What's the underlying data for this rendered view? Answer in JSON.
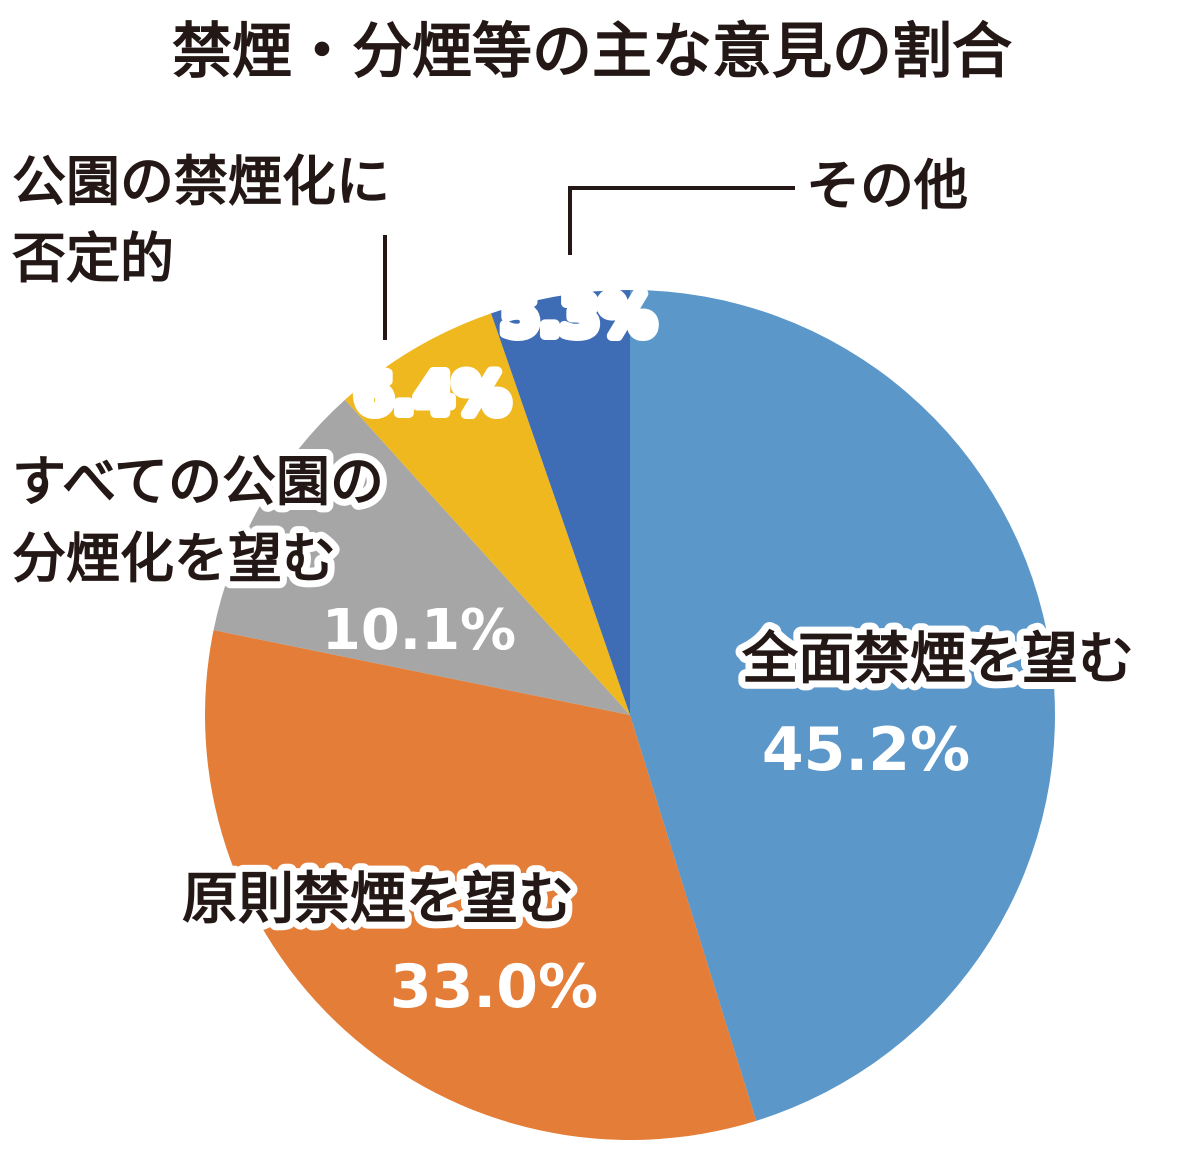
{
  "chart_data": {
    "type": "pie",
    "title": "禁煙・分煙等の主な意見の割合",
    "slices": [
      {
        "label": "全面禁煙を望む",
        "value": 45.2,
        "value_label": "45.2%",
        "color": "#5b97c9"
      },
      {
        "label": "原則禁煙を望む",
        "value": 33.0,
        "value_label": "33.0%",
        "color": "#e37d38"
      },
      {
        "label": "すべての公園の分煙化を望む",
        "label_lines": [
          "すべての公園の",
          "分煙化を望む"
        ],
        "value": 10.1,
        "value_label": "10.1%",
        "color": "#a6a6a6"
      },
      {
        "label": "公園の禁煙化に否定的",
        "label_lines": [
          "公園の禁煙化に",
          "否定的"
        ],
        "value": 6.4,
        "value_label": "6.4%",
        "color": "#f0b81f"
      },
      {
        "label": "その他",
        "value": 5.3,
        "value_label": "5.3%",
        "color": "#3e6db5"
      }
    ],
    "start": "12 o'clock",
    "direction": "clockwise",
    "legend": "none"
  },
  "colors": {
    "text": "#231815",
    "leader_line": "#231815",
    "slice_border": "#ffffff"
  }
}
